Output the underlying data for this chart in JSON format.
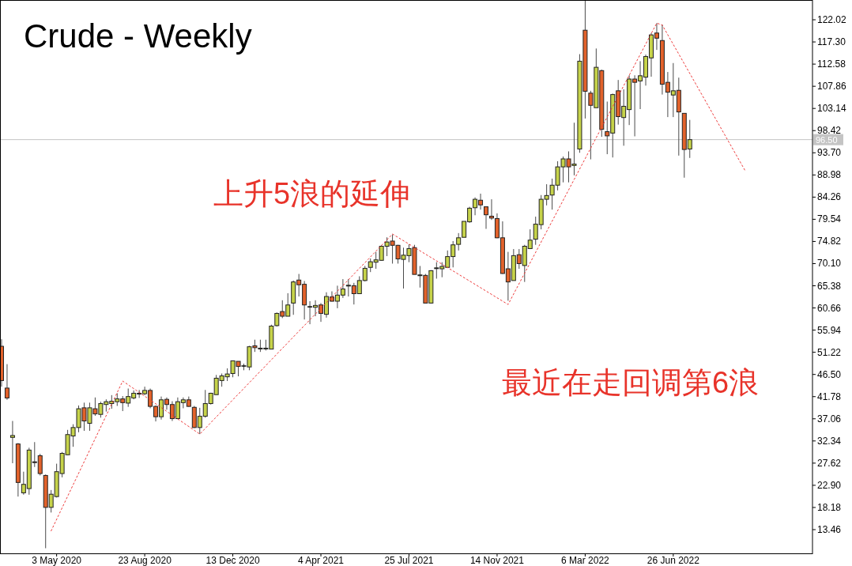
{
  "chart_data": {
    "type": "candlestick",
    "title": "Crude - Weekly",
    "annotations": [
      "上升5浪的延伸",
      "最近在走回调第6浪"
    ],
    "x": [
      "2020-02-23",
      "2020-03-01",
      "2020-03-08",
      "2020-03-15",
      "2020-03-22",
      "2020-03-29",
      "2020-04-05",
      "2020-04-12",
      "2020-04-19",
      "2020-04-26",
      "2020-05-03",
      "2020-05-10",
      "2020-05-17",
      "2020-05-24",
      "2020-05-31",
      "2020-06-07",
      "2020-06-14",
      "2020-06-21",
      "2020-06-28",
      "2020-07-05",
      "2020-07-12",
      "2020-07-19",
      "2020-07-26",
      "2020-08-02",
      "2020-08-09",
      "2020-08-16",
      "2020-08-23",
      "2020-08-30",
      "2020-09-06",
      "2020-09-13",
      "2020-09-20",
      "2020-09-27",
      "2020-10-04",
      "2020-10-11",
      "2020-10-18",
      "2020-10-25",
      "2020-11-01",
      "2020-11-08",
      "2020-11-15",
      "2020-11-22",
      "2020-11-29",
      "2020-12-06",
      "2020-12-13",
      "2020-12-20",
      "2020-12-27",
      "2021-01-03",
      "2021-01-10",
      "2021-01-17",
      "2021-01-24",
      "2021-01-31",
      "2021-02-07",
      "2021-02-14",
      "2021-02-21",
      "2021-02-28",
      "2021-03-07",
      "2021-03-14",
      "2021-03-21",
      "2021-03-28",
      "2021-04-04",
      "2021-04-11",
      "2021-04-18",
      "2021-04-25",
      "2021-05-02",
      "2021-05-09",
      "2021-05-16",
      "2021-05-23",
      "2021-05-30",
      "2021-06-06",
      "2021-06-13",
      "2021-06-20",
      "2021-06-27",
      "2021-07-04",
      "2021-07-11",
      "2021-07-18",
      "2021-07-25",
      "2021-08-01",
      "2021-08-08",
      "2021-08-15",
      "2021-08-22",
      "2021-08-29",
      "2021-09-05",
      "2021-09-12",
      "2021-09-19",
      "2021-09-26",
      "2021-10-03",
      "2021-10-10",
      "2021-10-17",
      "2021-10-24",
      "2021-10-31",
      "2021-11-07",
      "2021-11-14",
      "2021-11-21",
      "2021-11-28",
      "2021-12-05",
      "2021-12-12",
      "2021-12-19",
      "2021-12-26",
      "2022-01-02",
      "2022-01-09",
      "2022-01-16",
      "2022-01-23",
      "2022-01-30",
      "2022-02-06",
      "2022-02-13",
      "2022-02-20",
      "2022-02-27",
      "2022-03-06",
      "2022-03-13",
      "2022-03-20",
      "2022-03-27",
      "2022-04-03",
      "2022-04-10",
      "2022-04-17",
      "2022-04-24",
      "2022-05-01",
      "2022-05-08",
      "2022-05-15",
      "2022-05-22",
      "2022-05-29",
      "2022-06-05",
      "2022-06-12",
      "2022-06-19",
      "2022-06-26",
      "2022-07-03",
      "2022-07-10",
      "2022-07-17"
    ],
    "ohlc": [
      [
        52.5,
        54.0,
        43.9,
        45.2
      ],
      [
        43.6,
        48.7,
        41.1,
        41.5
      ],
      [
        33.1,
        36.6,
        27.6,
        33.5
      ],
      [
        31.7,
        31.9,
        20.5,
        23.5
      ],
      [
        21.3,
        25.8,
        20.9,
        23.1
      ],
      [
        22.2,
        30.9,
        20.9,
        30.4
      ],
      [
        27.9,
        32.1,
        26.8,
        27.8
      ],
      [
        29.2,
        29.6,
        25.0,
        25.4
      ],
      [
        25.0,
        25.2,
        9.5,
        18.2
      ],
      [
        18.2,
        21.9,
        17.1,
        21.0
      ],
      [
        20.5,
        27.5,
        20.3,
        25.8
      ],
      [
        25.4,
        30.0,
        24.6,
        29.7
      ],
      [
        29.4,
        34.7,
        29.3,
        33.7
      ],
      [
        33.4,
        35.9,
        31.1,
        35.2
      ],
      [
        35.2,
        39.9,
        34.2,
        39.2
      ],
      [
        39.4,
        40.5,
        34.5,
        36.6
      ],
      [
        36.1,
        40.5,
        34.5,
        39.4
      ],
      [
        39.2,
        41.6,
        37.7,
        38.1
      ],
      [
        38.0,
        40.7,
        37.3,
        40.3
      ],
      [
        40.1,
        41.2,
        38.6,
        40.7
      ],
      [
        40.3,
        42.1,
        39.2,
        40.8
      ],
      [
        40.7,
        42.5,
        39.8,
        41.3
      ],
      [
        41.3,
        41.9,
        38.7,
        40.5
      ],
      [
        40.4,
        43.5,
        39.6,
        41.8
      ],
      [
        41.5,
        43.1,
        41.2,
        42.5
      ],
      [
        42.4,
        43.2,
        41.5,
        42.5
      ],
      [
        42.4,
        43.9,
        42.1,
        43.1
      ],
      [
        43.1,
        43.5,
        39.3,
        39.7
      ],
      [
        39.7,
        39.9,
        36.5,
        37.5
      ],
      [
        37.5,
        41.8,
        36.9,
        41.1
      ],
      [
        41.2,
        41.6,
        39.0,
        40.1
      ],
      [
        40.1,
        40.8,
        36.6,
        37.1
      ],
      [
        37.1,
        41.6,
        37.0,
        40.7
      ],
      [
        40.5,
        41.6,
        39.3,
        41.1
      ],
      [
        41.1,
        41.8,
        39.6,
        39.7
      ],
      [
        39.5,
        39.8,
        35.1,
        35.2
      ],
      [
        35.2,
        39.4,
        33.8,
        37.6
      ],
      [
        37.6,
        43.2,
        37.3,
        40.3
      ],
      [
        40.3,
        42.6,
        40.1,
        42.5
      ],
      [
        42.2,
        46.4,
        42.2,
        45.7
      ],
      [
        45.2,
        46.7,
        43.9,
        46.2
      ],
      [
        46.0,
        47.8,
        45.1,
        46.6
      ],
      [
        46.7,
        49.4,
        45.9,
        49.4
      ],
      [
        49.3,
        49.3,
        46.1,
        48.2
      ],
      [
        48.3,
        48.8,
        47.4,
        48.3
      ],
      [
        48.1,
        52.6,
        47.4,
        52.4
      ],
      [
        52.6,
        53.9,
        51.3,
        52.2
      ],
      [
        52.1,
        53.9,
        51.3,
        52.0
      ],
      [
        52.0,
        53.9,
        51.6,
        52.1
      ],
      [
        51.9,
        57.1,
        51.9,
        56.8
      ],
      [
        56.9,
        59.7,
        56.7,
        59.5
      ],
      [
        59.9,
        62.3,
        58.5,
        58.9
      ],
      [
        58.9,
        63.8,
        58.9,
        61.3
      ],
      [
        61.7,
        66.5,
        59.2,
        66.2
      ],
      [
        66.6,
        67.9,
        63.1,
        65.6
      ],
      [
        65.7,
        66.4,
        58.2,
        61.3
      ],
      [
        60.9,
        62.1,
        57.2,
        60.9
      ],
      [
        60.8,
        62.3,
        58.9,
        61.2
      ],
      [
        61.3,
        61.7,
        57.7,
        59.5
      ],
      [
        59.3,
        64.0,
        58.6,
        63.1
      ],
      [
        63.0,
        64.2,
        62.0,
        62.1
      ],
      [
        62.1,
        65.4,
        60.6,
        63.4
      ],
      [
        63.4,
        66.8,
        62.8,
        64.7
      ],
      [
        65.4,
        66.8,
        63.1,
        65.5
      ],
      [
        65.4,
        66.0,
        61.4,
        63.7
      ],
      [
        63.7,
        67.4,
        63.7,
        66.5
      ],
      [
        66.5,
        69.6,
        66.3,
        69.1
      ],
      [
        69.3,
        71.2,
        68.3,
        70.5
      ],
      [
        70.4,
        72.6,
        69.0,
        70.9
      ],
      [
        70.8,
        74.0,
        70.7,
        73.8
      ],
      [
        73.8,
        75.7,
        71.7,
        74.7
      ],
      [
        74.9,
        76.3,
        70.1,
        74.0
      ],
      [
        74.0,
        74.1,
        70.1,
        71.1
      ],
      [
        71.0,
        73.5,
        64.8,
        71.9
      ],
      [
        71.8,
        74.2,
        70.4,
        73.3
      ],
      [
        73.5,
        74.1,
        67.8,
        67.8
      ],
      [
        67.6,
        69.6,
        65.0,
        67.7
      ],
      [
        67.6,
        67.9,
        61.7,
        61.7
      ],
      [
        61.7,
        68.7,
        61.6,
        68.6
      ],
      [
        69.1,
        70.4,
        66.9,
        69.2
      ],
      [
        69.0,
        70.4,
        67.2,
        69.5
      ],
      [
        69.3,
        72.9,
        69.3,
        71.6
      ],
      [
        71.6,
        74.9,
        69.3,
        74.1
      ],
      [
        74.2,
        76.6,
        72.9,
        75.6
      ],
      [
        75.7,
        79.1,
        75.7,
        79.1
      ],
      [
        79.0,
        82.2,
        78.8,
        81.9
      ],
      [
        82.0,
        84.2,
        80.4,
        83.8
      ],
      [
        83.6,
        85.0,
        81.6,
        82.6
      ],
      [
        82.2,
        82.2,
        77.5,
        80.5
      ],
      [
        80.2,
        83.8,
        79.4,
        79.8
      ],
      [
        79.7,
        80.8,
        75.5,
        75.6
      ],
      [
        75.6,
        79.1,
        67.9,
        68.0
      ],
      [
        69.0,
        72.6,
        62.2,
        66.2
      ],
      [
        66.5,
        73.2,
        66.5,
        71.8
      ],
      [
        72.0,
        73.2,
        69.0,
        70.1
      ],
      [
        69.7,
        74.1,
        66.2,
        73.8
      ],
      [
        73.3,
        77.4,
        73.2,
        75.1
      ],
      [
        75.3,
        80.1,
        74.1,
        78.5
      ],
      [
        78.4,
        84.7,
        77.4,
        83.8
      ],
      [
        83.8,
        87.0,
        82.5,
        84.6
      ],
      [
        84.7,
        88.2,
        81.6,
        86.8
      ],
      [
        86.8,
        91.9,
        85.7,
        90.7
      ],
      [
        90.7,
        92.9,
        87.4,
        92.4
      ],
      [
        92.4,
        94.0,
        87.4,
        90.7
      ],
      [
        91.0,
        100.1,
        88.9,
        91.3
      ],
      [
        94.5,
        114.7,
        93.7,
        113.2
      ],
      [
        119.8,
        126.2,
        101.0,
        106.8
      ],
      [
        106.4,
        106.9,
        92.3,
        103.8
      ],
      [
        103.3,
        115.9,
        103.3,
        111.9
      ],
      [
        111.2,
        111.4,
        97.1,
        98.7
      ],
      [
        98.2,
        104.6,
        93.4,
        97.3
      ],
      [
        97.9,
        106.3,
        92.7,
        106.1
      ],
      [
        106.9,
        109.2,
        99.7,
        101.4
      ],
      [
        101.2,
        107.2,
        95.2,
        103.6
      ],
      [
        102.9,
        110.2,
        99.6,
        109.4
      ],
      [
        109.4,
        110.2,
        97.2,
        108.7
      ],
      [
        109.0,
        113.2,
        103.0,
        110.1
      ],
      [
        109.8,
        114.6,
        108.0,
        114.2
      ],
      [
        113.9,
        119.2,
        109.9,
        118.8
      ],
      [
        119.2,
        121.3,
        115.6,
        118.1
      ],
      [
        117.6,
        121.0,
        106.1,
        108.3
      ],
      [
        108.7,
        110.9,
        101.3,
        106.6
      ],
      [
        106.0,
        112.8,
        101.3,
        106.9
      ],
      [
        107.0,
        109.7,
        93.1,
        102.4
      ],
      [
        102.1,
        102.1,
        88.4,
        94.4
      ],
      [
        94.5,
        100.7,
        92.6,
        96.5
      ]
    ],
    "series": [
      {
        "type": "line",
        "color": "#ee3b3b",
        "line_style": "dotted",
        "x": [
          "2020-04-26",
          "2020-07-26",
          "2020-11-01",
          "2021-07-04",
          "2021-11-28",
          "2022-06-05",
          "2022-06-12",
          "2022-09-25"
        ],
        "values": [
          13.2,
          45.1,
          33.8,
          76.4,
          61.4,
          121.3,
          120.9,
          90.0
        ]
      }
    ],
    "ref_lines": [
      {
        "axis": "y",
        "value": 96.5,
        "label": "96.50",
        "color": "#c4c4c4"
      }
    ],
    "xlim": [
      "2020-02-21",
      "2022-12-20"
    ],
    "xticks": [
      {
        "value": "2020-05-03",
        "label": "3 May 2020"
      },
      {
        "value": "2020-08-23",
        "label": "23 Aug 2020"
      },
      {
        "value": "2020-12-13",
        "label": "13 Dec 2020"
      },
      {
        "value": "2021-04-04",
        "label": "4 Apr 2021"
      },
      {
        "value": "2021-07-25",
        "label": "25 Jul 2021"
      },
      {
        "value": "2021-11-14",
        "label": "14 Nov 2021"
      },
      {
        "value": "2022-03-06",
        "label": "6 Mar 2022"
      },
      {
        "value": "2022-06-26",
        "label": "26 Jun 2022"
      }
    ],
    "ylim": [
      8.41,
      126.23
    ],
    "yticks": [
      13.46,
      18.18,
      {
        "value": 22.9,
        "label": "22.90"
      },
      27.62,
      32.34,
      37.06,
      41.78,
      {
        "value": 46.5,
        "label": "46.50"
      },
      51.22,
      55.94,
      60.66,
      65.38,
      {
        "value": 70.1,
        "label": "70.10"
      },
      74.82,
      79.54,
      84.26,
      88.98,
      {
        "value": 93.7,
        "label": "93.70"
      },
      98.42,
      103.14,
      107.86,
      112.58,
      {
        "value": 117.3,
        "label": "117.30"
      },
      122.02
    ]
  }
}
